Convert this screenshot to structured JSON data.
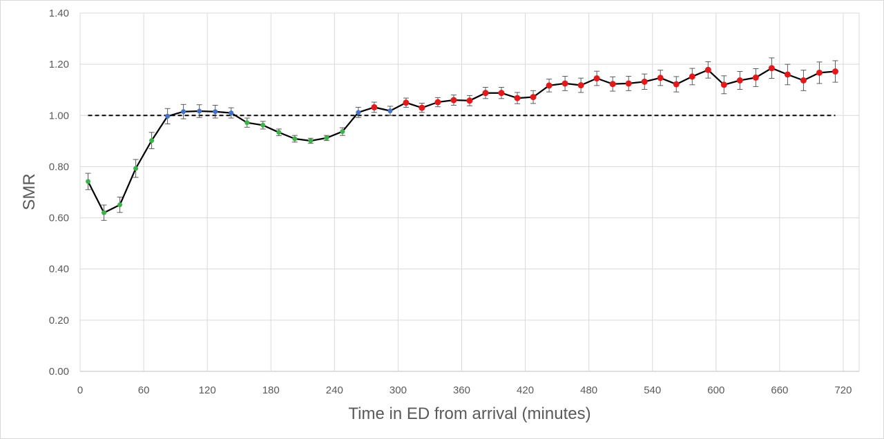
{
  "chart_data": {
    "type": "line",
    "title": "",
    "xlabel": "Time in ED from arrival (minutes)",
    "ylabel": "SMR",
    "xlim": [
      0,
      735
    ],
    "ylim": [
      0,
      1.4
    ],
    "x_ticks": [
      0,
      60,
      120,
      180,
      240,
      300,
      360,
      420,
      480,
      540,
      600,
      660,
      720
    ],
    "y_ticks": [
      0.0,
      0.2,
      0.4,
      0.6,
      0.8,
      1.0,
      1.2,
      1.4
    ],
    "x_tick_labels": [
      "0",
      "60",
      "120",
      "180",
      "240",
      "300",
      "360",
      "420",
      "480",
      "540",
      "600",
      "660",
      "720"
    ],
    "y_tick_labels": [
      "0.00",
      "0.20",
      "0.40",
      "0.60",
      "0.80",
      "1.00",
      "1.20",
      "1.40"
    ],
    "grid": true,
    "reference_line": {
      "y": 1.0,
      "style": "dashed",
      "color": "#000000"
    },
    "line_color": "#000000",
    "point_colors": {
      "green": "#3cb34a",
      "blue": "#4472c4",
      "red": "#e31a1c"
    },
    "error_bar_color": "#595959",
    "points": [
      {
        "x": 7.5,
        "y": 0.742,
        "err": 0.032,
        "color": "green"
      },
      {
        "x": 22.5,
        "y": 0.62,
        "err": 0.03,
        "color": "green"
      },
      {
        "x": 37.5,
        "y": 0.651,
        "err": 0.03,
        "color": "green"
      },
      {
        "x": 52.5,
        "y": 0.793,
        "err": 0.035,
        "color": "green"
      },
      {
        "x": 67.5,
        "y": 0.902,
        "err": 0.032,
        "color": "green"
      },
      {
        "x": 82.5,
        "y": 0.997,
        "err": 0.03,
        "color": "blue"
      },
      {
        "x": 97.5,
        "y": 1.015,
        "err": 0.028,
        "color": "blue"
      },
      {
        "x": 112.5,
        "y": 1.017,
        "err": 0.025,
        "color": "blue"
      },
      {
        "x": 127.5,
        "y": 1.015,
        "err": 0.025,
        "color": "blue"
      },
      {
        "x": 142.5,
        "y": 1.01,
        "err": 0.02,
        "color": "blue"
      },
      {
        "x": 157.5,
        "y": 0.972,
        "err": 0.018,
        "color": "green"
      },
      {
        "x": 172.5,
        "y": 0.962,
        "err": 0.015,
        "color": "green"
      },
      {
        "x": 187.5,
        "y": 0.934,
        "err": 0.013,
        "color": "green"
      },
      {
        "x": 202.5,
        "y": 0.909,
        "err": 0.013,
        "color": "green"
      },
      {
        "x": 217.5,
        "y": 0.901,
        "err": 0.01,
        "color": "green"
      },
      {
        "x": 232.5,
        "y": 0.912,
        "err": 0.01,
        "color": "green"
      },
      {
        "x": 247.5,
        "y": 0.937,
        "err": 0.015,
        "color": "green"
      },
      {
        "x": 262.5,
        "y": 1.012,
        "err": 0.02,
        "color": "blue"
      },
      {
        "x": 277.5,
        "y": 1.032,
        "err": 0.02,
        "color": "red"
      },
      {
        "x": 292.5,
        "y": 1.018,
        "err": 0.018,
        "color": "blue"
      },
      {
        "x": 307.5,
        "y": 1.05,
        "err": 0.018,
        "color": "red"
      },
      {
        "x": 322.5,
        "y": 1.03,
        "err": 0.018,
        "color": "red"
      },
      {
        "x": 337.5,
        "y": 1.052,
        "err": 0.018,
        "color": "red"
      },
      {
        "x": 352.5,
        "y": 1.06,
        "err": 0.02,
        "color": "red"
      },
      {
        "x": 367.5,
        "y": 1.058,
        "err": 0.02,
        "color": "red"
      },
      {
        "x": 382.5,
        "y": 1.088,
        "err": 0.022,
        "color": "red"
      },
      {
        "x": 397.5,
        "y": 1.088,
        "err": 0.022,
        "color": "red"
      },
      {
        "x": 412.5,
        "y": 1.068,
        "err": 0.022,
        "color": "red"
      },
      {
        "x": 427.5,
        "y": 1.072,
        "err": 0.025,
        "color": "red"
      },
      {
        "x": 442.5,
        "y": 1.117,
        "err": 0.025,
        "color": "red"
      },
      {
        "x": 457.5,
        "y": 1.125,
        "err": 0.028,
        "color": "red"
      },
      {
        "x": 472.5,
        "y": 1.118,
        "err": 0.028,
        "color": "red"
      },
      {
        "x": 487.5,
        "y": 1.145,
        "err": 0.028,
        "color": "red"
      },
      {
        "x": 502.5,
        "y": 1.123,
        "err": 0.028,
        "color": "red"
      },
      {
        "x": 517.5,
        "y": 1.125,
        "err": 0.028,
        "color": "red"
      },
      {
        "x": 532.5,
        "y": 1.132,
        "err": 0.03,
        "color": "red"
      },
      {
        "x": 547.5,
        "y": 1.147,
        "err": 0.03,
        "color": "red"
      },
      {
        "x": 562.5,
        "y": 1.122,
        "err": 0.03,
        "color": "red"
      },
      {
        "x": 577.5,
        "y": 1.152,
        "err": 0.032,
        "color": "red"
      },
      {
        "x": 592.5,
        "y": 1.178,
        "err": 0.032,
        "color": "red"
      },
      {
        "x": 607.5,
        "y": 1.12,
        "err": 0.035,
        "color": "red"
      },
      {
        "x": 622.5,
        "y": 1.137,
        "err": 0.035,
        "color": "red"
      },
      {
        "x": 637.5,
        "y": 1.148,
        "err": 0.035,
        "color": "red"
      },
      {
        "x": 652.5,
        "y": 1.185,
        "err": 0.04,
        "color": "red"
      },
      {
        "x": 667.5,
        "y": 1.16,
        "err": 0.04,
        "color": "red"
      },
      {
        "x": 682.5,
        "y": 1.137,
        "err": 0.04,
        "color": "red"
      },
      {
        "x": 697.5,
        "y": 1.167,
        "err": 0.042,
        "color": "red"
      },
      {
        "x": 712.5,
        "y": 1.172,
        "err": 0.042,
        "color": "red"
      }
    ]
  }
}
